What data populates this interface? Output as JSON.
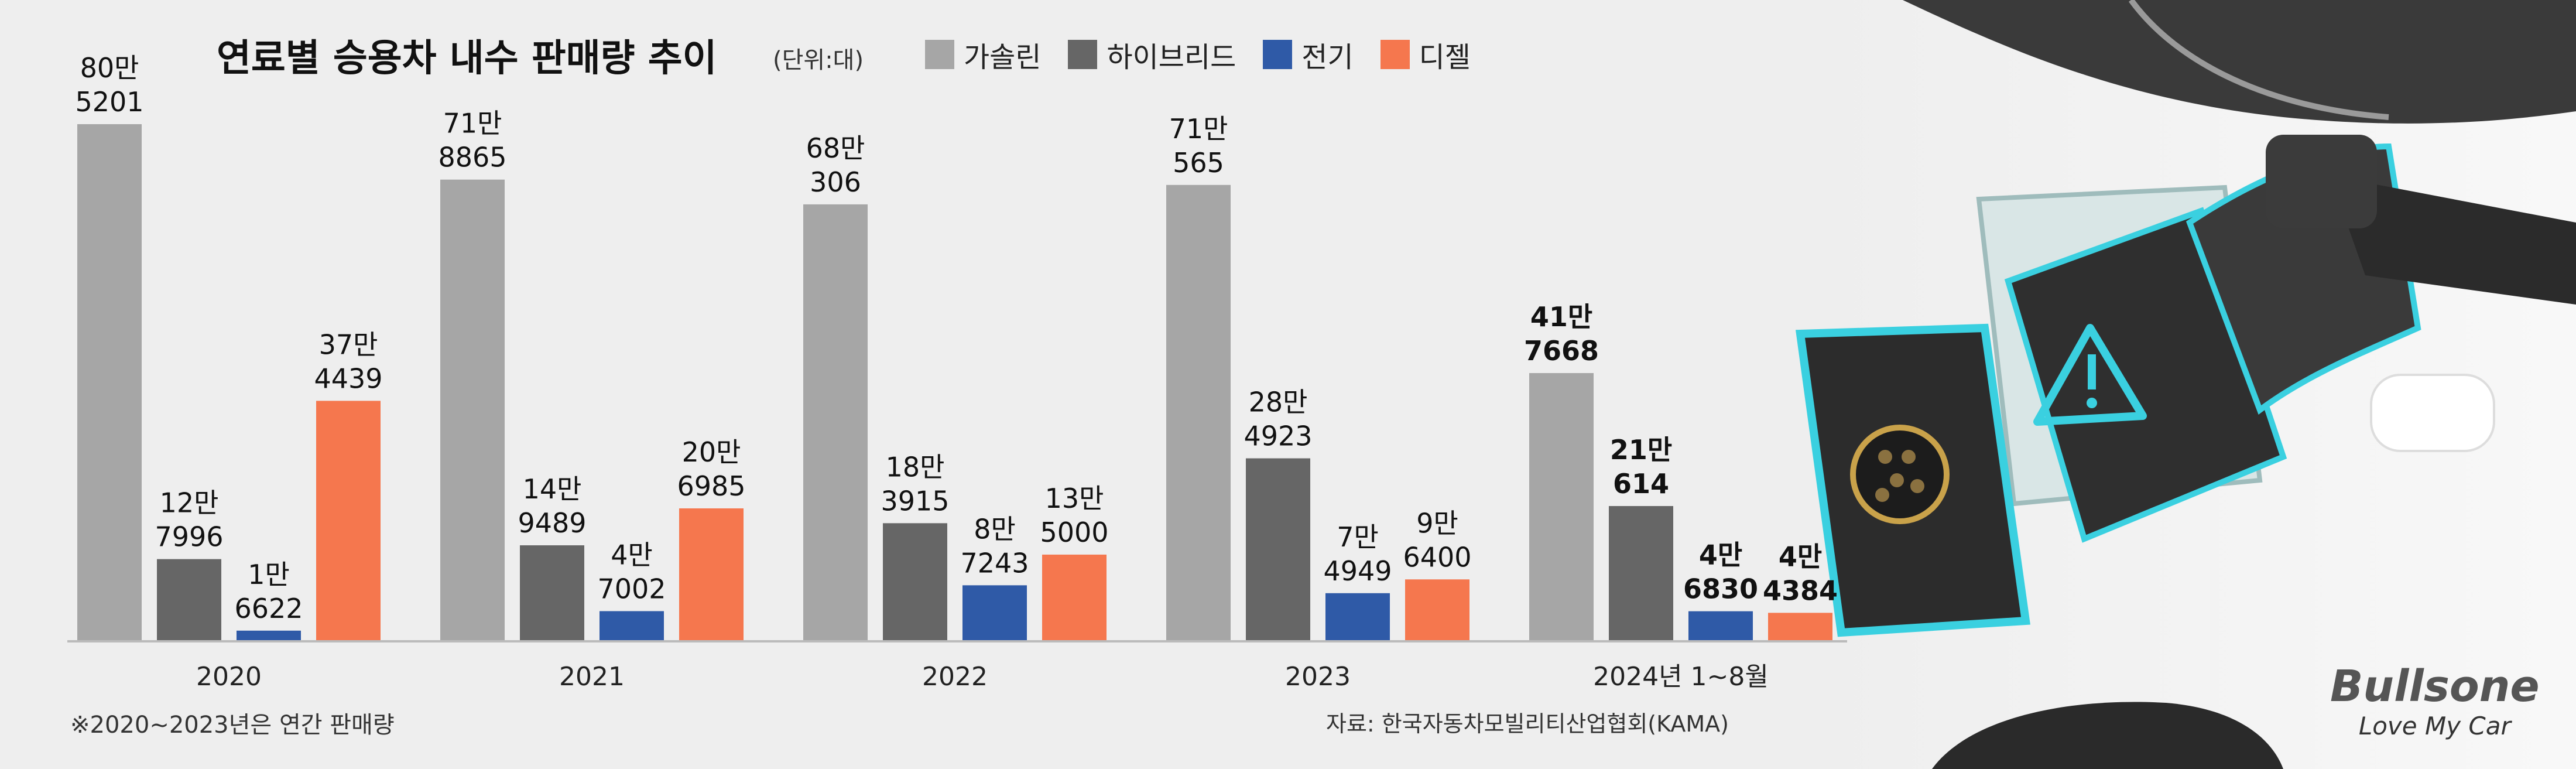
{
  "title": "연료별 승용차 내수 판매량 추이",
  "unit_note": "(단위:대)",
  "footnote": "※2020~2023년은 연간 판매량",
  "source": "자료: 한국자동차모빌리티산업협회(KAMA)",
  "brand": {
    "name": "Bullsone",
    "tagline": "Love My Car"
  },
  "colors": {
    "가솔린": "#a6a6a6",
    "하이브리드": "#666666",
    "전기": "#2f5aa7",
    "디젤": "#f5774e",
    "background": "#eeeeee"
  },
  "chart_data": {
    "type": "bar",
    "title": "연료별 승용차 내수 판매량 추이",
    "unit": "(단위:대)",
    "categories": [
      "2020",
      "2021",
      "2022",
      "2023",
      "2024년 1~8월"
    ],
    "series": [
      {
        "name": "가솔린",
        "values": [
          805201,
          718865,
          680306,
          710565,
          417668
        ],
        "labels": [
          [
            "80만",
            "5201"
          ],
          [
            "71만",
            "8865"
          ],
          [
            "68만",
            "306"
          ],
          [
            "71만",
            "565"
          ],
          [
            "41만",
            "7668"
          ]
        ]
      },
      {
        "name": "하이브리드",
        "values": [
          127996,
          149489,
          183915,
          284923,
          210614
        ],
        "labels": [
          [
            "12만",
            "7996"
          ],
          [
            "14만",
            "9489"
          ],
          [
            "18만",
            "3915"
          ],
          [
            "28만",
            "4923"
          ],
          [
            "21만",
            "614"
          ]
        ]
      },
      {
        "name": "전기",
        "values": [
          16622,
          47002,
          87243,
          74949,
          46830
        ],
        "labels": [
          [
            "1만",
            "6622"
          ],
          [
            "4만",
            "7002"
          ],
          [
            "8만",
            "7243"
          ],
          [
            "7만",
            "4949"
          ],
          [
            "4만",
            "6830"
          ]
        ]
      },
      {
        "name": "디젤",
        "values": [
          374439,
          206985,
          135000,
          96400,
          44384
        ],
        "labels": [
          [
            "37만",
            "4439"
          ],
          [
            "20만",
            "6985"
          ],
          [
            "13만",
            "5000"
          ],
          [
            "9만",
            "6400"
          ],
          [
            "4만",
            "4384"
          ]
        ]
      }
    ],
    "bold_categories": [
      "2024년 1~8월"
    ],
    "ylim": [
      0,
      805201
    ],
    "grid": false,
    "legend": "top"
  }
}
